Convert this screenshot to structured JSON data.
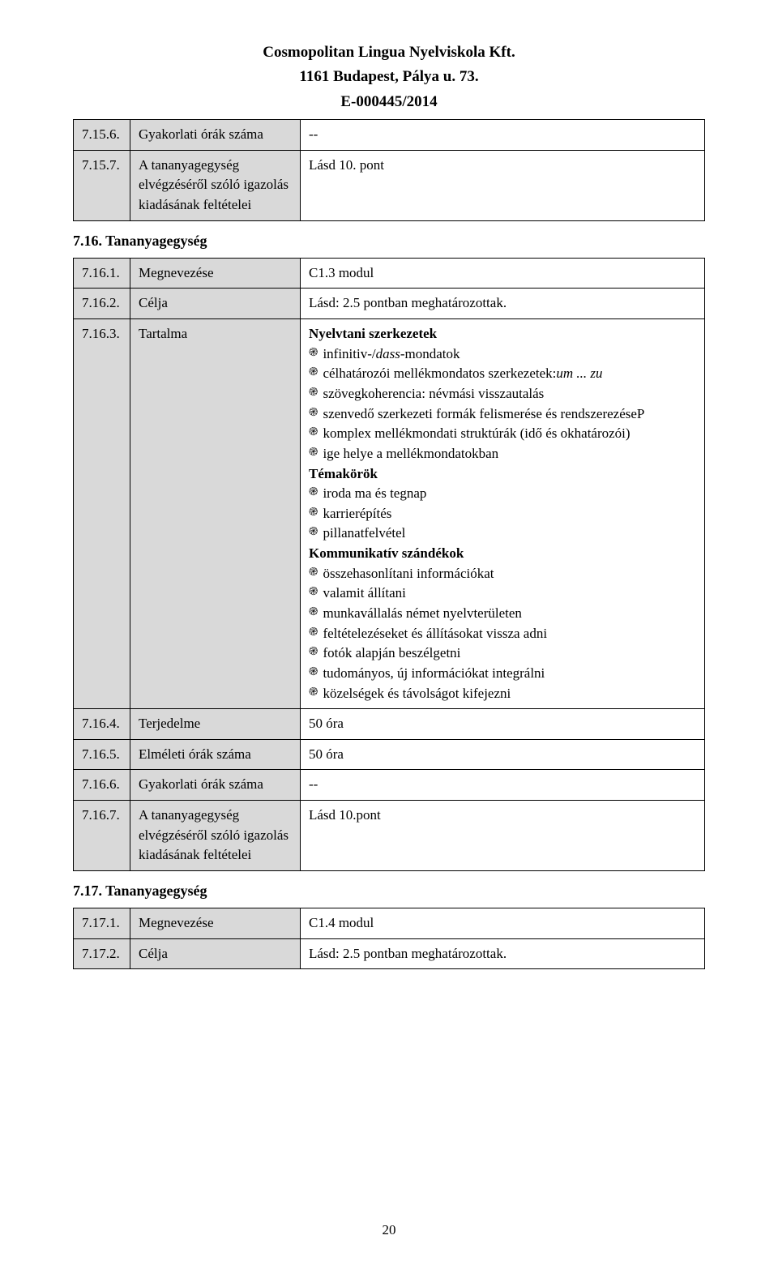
{
  "header": {
    "line1": "Cosmopolitan Lingua Nyelviskola Kft.",
    "line2": "1161 Budapest, Pálya u. 73.",
    "line3": "E-000445/2014"
  },
  "table1": {
    "rows": [
      {
        "num": "7.15.6.",
        "label": "Gyakorlati órák száma",
        "value": "--"
      },
      {
        "num": "7.15.7.",
        "label": "A tananyagegység elvégzéséről szóló igazolás kiadásának feltételei",
        "value": "Lásd 10. pont"
      }
    ]
  },
  "section716_heading": "7.16. Tananyagegység",
  "table2": {
    "rows": [
      {
        "num": "7.16.1.",
        "label": "Megnevezése",
        "value": "C1.3 modul"
      },
      {
        "num": "7.16.2.",
        "label": "Célja",
        "value": "Lásd: 2.5 pontban meghatározottak."
      },
      {
        "num": "7.16.3.",
        "label": "Tartalma",
        "content": "complex"
      },
      {
        "num": "7.16.4.",
        "label": "Terjedelme",
        "value": "50 óra"
      },
      {
        "num": "7.16.5.",
        "label": "Elméleti órák száma",
        "value": "50 óra"
      },
      {
        "num": "7.16.6.",
        "label": "Gyakorlati órák száma",
        "value": "--"
      },
      {
        "num": "7.16.7.",
        "label": "A tananyagegység elvégzéséről szóló igazolás kiadásának feltételei",
        "value": "Lásd 10.pont"
      }
    ]
  },
  "tartalma": {
    "h1": "Nyelvtani szerkezetek",
    "b1_pre": "infinitiv-/",
    "b1_it": "dass",
    "b1_post": "-mondatok",
    "b2_pre": "célhatározói mellékmondatos szerkezetek:",
    "b2_it": "um ... zu",
    "b3": "szövegkoherencia: névmási visszautalás",
    "b4": "szenvedő szerkezeti formák felismerése és rendszerezéseP",
    "b5": "komplex mellékmondati struktúrák (idő és okhatározói)",
    "b6": "ige helye a mellékmondatokban",
    "h2": "Témakörök",
    "b7": "iroda ma és tegnap",
    "b8": "karrierépítés",
    "b9": "pillanatfelvétel",
    "h3": "Kommunikatív szándékok",
    "b10": "összehasonlítani információkat",
    "b11": "valamit állítani",
    "b12": "munkavállalás német nyelvterületen",
    "b13": "feltételezéseket és állításokat vissza adni",
    "b14": "fotók alapján beszélgetni",
    "b15": "tudományos, új információkat integrálni",
    "b16": "közelségek és távolságot kifejezni"
  },
  "section717_heading": "7.17. Tananyagegység",
  "table3": {
    "rows": [
      {
        "num": "7.17.1.",
        "label": "Megnevezése",
        "value": "C1.4 modul"
      },
      {
        "num": "7.17.2.",
        "label": "Célja",
        "value": "Lásd: 2.5 pontban meghatározottak."
      }
    ]
  },
  "page_number": "20",
  "bullet_glyph": "֎",
  "colors": {
    "cell_gray": "#d9d9d9",
    "cell_white": "#ffffff",
    "border": "#000000",
    "text": "#000000"
  }
}
